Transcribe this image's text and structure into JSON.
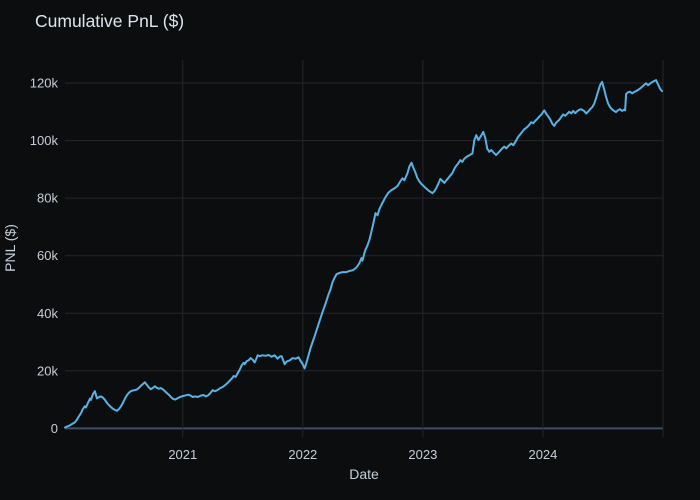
{
  "header": {
    "title": "Cumulative PnL ($)"
  },
  "colors": {
    "background": "#0c0d0f",
    "grid": "#26272b",
    "zero_line": "#3d4f63",
    "series_line": "#57b2e5",
    "title_text": "#dce5ee",
    "tick_text": "#c6cfd9"
  },
  "chart_data": {
    "type": "line",
    "title": "Cumulative PnL ($)",
    "xlabel": "Date",
    "ylabel": "PNL ($)",
    "legend": "none",
    "grid": true,
    "y_unit": "USD thousands (k)",
    "x_unit": "decimal year",
    "x_range": [
      2020.019,
      2025.0
    ],
    "y_range_k": [
      -3,
      128
    ],
    "x_ticks": [
      {
        "value": 2021,
        "label": "2021"
      },
      {
        "value": 2022,
        "label": "2022"
      },
      {
        "value": 2023,
        "label": "2023"
      },
      {
        "value": 2024,
        "label": "2024"
      },
      {
        "value": 2025,
        "label": ""
      }
    ],
    "y_ticks": [
      {
        "value": 0,
        "label": "0"
      },
      {
        "value": 20,
        "label": "20k"
      },
      {
        "value": 40,
        "label": "40k"
      },
      {
        "value": 60,
        "label": "60k"
      },
      {
        "value": 80,
        "label": "80k"
      },
      {
        "value": 100,
        "label": "100k"
      },
      {
        "value": 120,
        "label": "120k"
      }
    ],
    "series": [
      {
        "name": "Cumulative PnL",
        "color": "#57b2e5",
        "points": [
          [
            2020.019,
            0.3
          ],
          [
            2020.035,
            0.6
          ],
          [
            2020.052,
            0.9
          ],
          [
            2020.069,
            1.3
          ],
          [
            2020.085,
            1.7
          ],
          [
            2020.102,
            2.1
          ],
          [
            2020.118,
            3.0
          ],
          [
            2020.135,
            4.2
          ],
          [
            2020.152,
            5.3
          ],
          [
            2020.168,
            6.8
          ],
          [
            2020.185,
            7.7
          ],
          [
            2020.193,
            7.2
          ],
          [
            2020.21,
            8.8
          ],
          [
            2020.227,
            10.3
          ],
          [
            2020.235,
            9.9
          ],
          [
            2020.252,
            11.9
          ],
          [
            2020.268,
            12.9
          ],
          [
            2020.285,
            10.4
          ],
          [
            2020.302,
            10.9
          ],
          [
            2020.318,
            11.1
          ],
          [
            2020.335,
            10.7
          ],
          [
            2020.352,
            9.9
          ],
          [
            2020.368,
            8.9
          ],
          [
            2020.385,
            8.1
          ],
          [
            2020.402,
            7.4
          ],
          [
            2020.418,
            6.8
          ],
          [
            2020.435,
            6.4
          ],
          [
            2020.452,
            6.1
          ],
          [
            2020.468,
            6.7
          ],
          [
            2020.485,
            7.6
          ],
          [
            2020.501,
            8.9
          ],
          [
            2020.518,
            10.3
          ],
          [
            2020.535,
            11.5
          ],
          [
            2020.551,
            12.4
          ],
          [
            2020.568,
            12.9
          ],
          [
            2020.585,
            13.2
          ],
          [
            2020.601,
            13.3
          ],
          [
            2020.618,
            13.5
          ],
          [
            2020.635,
            14.1
          ],
          [
            2020.651,
            14.8
          ],
          [
            2020.668,
            15.4
          ],
          [
            2020.684,
            16.0
          ],
          [
            2020.701,
            15.1
          ],
          [
            2020.718,
            14.2
          ],
          [
            2020.734,
            13.6
          ],
          [
            2020.751,
            14.1
          ],
          [
            2020.768,
            14.6
          ],
          [
            2020.784,
            14.1
          ],
          [
            2020.801,
            13.8
          ],
          [
            2020.817,
            14.0
          ],
          [
            2020.834,
            13.6
          ],
          [
            2020.851,
            12.9
          ],
          [
            2020.867,
            12.3
          ],
          [
            2020.884,
            11.7
          ],
          [
            2020.901,
            10.9
          ],
          [
            2020.917,
            10.3
          ],
          [
            2020.934,
            10.0
          ],
          [
            2020.95,
            10.3
          ],
          [
            2020.967,
            10.7
          ],
          [
            2020.984,
            11.0
          ],
          [
            2021.0,
            11.2
          ],
          [
            2021.025,
            11.5
          ],
          [
            2021.05,
            11.7
          ],
          [
            2021.067,
            11.3
          ],
          [
            2021.083,
            10.9
          ],
          [
            2021.1,
            11.1
          ],
          [
            2021.125,
            10.9
          ],
          [
            2021.15,
            11.4
          ],
          [
            2021.175,
            11.6
          ],
          [
            2021.191,
            11.1
          ],
          [
            2021.208,
            11.4
          ],
          [
            2021.225,
            12.0
          ],
          [
            2021.249,
            13.3
          ],
          [
            2021.266,
            12.9
          ],
          [
            2021.283,
            13.2
          ],
          [
            2021.308,
            13.9
          ],
          [
            2021.333,
            14.4
          ],
          [
            2021.358,
            15.2
          ],
          [
            2021.383,
            16.2
          ],
          [
            2021.408,
            17.3
          ],
          [
            2021.424,
            18.2
          ],
          [
            2021.441,
            17.9
          ],
          [
            2021.457,
            19.1
          ],
          [
            2021.474,
            20.4
          ],
          [
            2021.491,
            21.9
          ],
          [
            2021.507,
            22.8
          ],
          [
            2021.516,
            22.3
          ],
          [
            2021.532,
            23.3
          ],
          [
            2021.549,
            23.7
          ],
          [
            2021.566,
            24.4
          ],
          [
            2021.582,
            23.9
          ],
          [
            2021.599,
            22.9
          ],
          [
            2021.615,
            24.4
          ],
          [
            2021.624,
            25.4
          ],
          [
            2021.64,
            25.1
          ],
          [
            2021.665,
            25.4
          ],
          [
            2021.69,
            25.2
          ],
          [
            2021.715,
            25.5
          ],
          [
            2021.74,
            24.9
          ],
          [
            2021.765,
            25.4
          ],
          [
            2021.79,
            24.2
          ],
          [
            2021.807,
            24.9
          ],
          [
            2021.823,
            25.1
          ],
          [
            2021.84,
            23.3
          ],
          [
            2021.848,
            22.3
          ],
          [
            2021.865,
            23.2
          ],
          [
            2021.89,
            23.6
          ],
          [
            2021.915,
            24.4
          ],
          [
            2021.94,
            24.2
          ],
          [
            2021.965,
            24.7
          ],
          [
            2021.981,
            23.4
          ],
          [
            2021.998,
            22.4
          ],
          [
            2022.015,
            20.8
          ],
          [
            2022.031,
            23.0
          ],
          [
            2022.048,
            25.5
          ],
          [
            2022.065,
            28.0
          ],
          [
            2022.081,
            30.0
          ],
          [
            2022.098,
            32.0
          ],
          [
            2022.114,
            34.0
          ],
          [
            2022.131,
            36.3
          ],
          [
            2022.148,
            38.4
          ],
          [
            2022.164,
            40.4
          ],
          [
            2022.181,
            42.4
          ],
          [
            2022.198,
            44.5
          ],
          [
            2022.214,
            46.5
          ],
          [
            2022.231,
            48.4
          ],
          [
            2022.247,
            50.8
          ],
          [
            2022.264,
            52.3
          ],
          [
            2022.281,
            53.6
          ],
          [
            2022.306,
            54.0
          ],
          [
            2022.33,
            54.3
          ],
          [
            2022.364,
            54.3
          ],
          [
            2022.389,
            54.7
          ],
          [
            2022.414,
            54.9
          ],
          [
            2022.447,
            55.9
          ],
          [
            2022.472,
            57.5
          ],
          [
            2022.489,
            59.2
          ],
          [
            2022.497,
            58.3
          ],
          [
            2022.514,
            61.0
          ],
          [
            2022.522,
            62.1
          ],
          [
            2022.539,
            63.6
          ],
          [
            2022.555,
            65.6
          ],
          [
            2022.572,
            68.5
          ],
          [
            2022.589,
            71.5
          ],
          [
            2022.605,
            74.8
          ],
          [
            2022.622,
            74.0
          ],
          [
            2022.639,
            76.3
          ],
          [
            2022.663,
            78.3
          ],
          [
            2022.688,
            80.3
          ],
          [
            2022.713,
            81.9
          ],
          [
            2022.738,
            82.8
          ],
          [
            2022.763,
            83.4
          ],
          [
            2022.788,
            84.2
          ],
          [
            2022.813,
            85.9
          ],
          [
            2022.83,
            86.9
          ],
          [
            2022.846,
            86.2
          ],
          [
            2022.871,
            88.6
          ],
          [
            2022.888,
            91.0
          ],
          [
            2022.905,
            92.3
          ],
          [
            2022.921,
            90.5
          ],
          [
            2022.938,
            88.9
          ],
          [
            2022.954,
            87.0
          ],
          [
            2022.971,
            85.8
          ],
          [
            2022.988,
            84.9
          ],
          [
            2023.004,
            84.3
          ],
          [
            2023.021,
            83.6
          ],
          [
            2023.046,
            82.7
          ],
          [
            2023.079,
            81.7
          ],
          [
            2023.096,
            82.4
          ],
          [
            2023.112,
            83.5
          ],
          [
            2023.129,
            85.1
          ],
          [
            2023.146,
            86.7
          ],
          [
            2023.162,
            86.0
          ],
          [
            2023.179,
            85.3
          ],
          [
            2023.196,
            86.2
          ],
          [
            2023.22,
            87.4
          ],
          [
            2023.245,
            88.7
          ],
          [
            2023.27,
            90.8
          ],
          [
            2023.295,
            92.1
          ],
          [
            2023.312,
            93.2
          ],
          [
            2023.328,
            92.6
          ],
          [
            2023.345,
            93.7
          ],
          [
            2023.362,
            94.3
          ],
          [
            2023.387,
            94.9
          ],
          [
            2023.412,
            95.5
          ],
          [
            2023.428,
            100.1
          ],
          [
            2023.445,
            101.9
          ],
          [
            2023.462,
            100.2
          ],
          [
            2023.478,
            101.2
          ],
          [
            2023.503,
            103.0
          ],
          [
            2023.52,
            100.9
          ],
          [
            2023.536,
            97.2
          ],
          [
            2023.553,
            96.1
          ],
          [
            2023.569,
            96.7
          ],
          [
            2023.594,
            95.6
          ],
          [
            2023.611,
            95.0
          ],
          [
            2023.636,
            96.1
          ],
          [
            2023.661,
            97.3
          ],
          [
            2023.678,
            97.9
          ],
          [
            2023.694,
            97.3
          ],
          [
            2023.719,
            98.4
          ],
          [
            2023.736,
            99.0
          ],
          [
            2023.753,
            98.4
          ],
          [
            2023.778,
            100.1
          ],
          [
            2023.794,
            101.3
          ],
          [
            2023.811,
            102.2
          ],
          [
            2023.827,
            103.0
          ],
          [
            2023.844,
            103.9
          ],
          [
            2023.869,
            104.7
          ],
          [
            2023.886,
            105.5
          ],
          [
            2023.902,
            106.4
          ],
          [
            2023.919,
            106.0
          ],
          [
            2023.935,
            106.8
          ],
          [
            2023.952,
            107.5
          ],
          [
            2023.969,
            108.3
          ],
          [
            2023.986,
            109.0
          ],
          [
            2024.002,
            110.0
          ],
          [
            2024.011,
            110.5
          ],
          [
            2024.027,
            109.3
          ],
          [
            2024.044,
            108.4
          ],
          [
            2024.061,
            107.3
          ],
          [
            2024.077,
            105.9
          ],
          [
            2024.094,
            105.1
          ],
          [
            2024.11,
            106.2
          ],
          [
            2024.135,
            107.2
          ],
          [
            2024.152,
            108.2
          ],
          [
            2024.169,
            109.1
          ],
          [
            2024.185,
            108.6
          ],
          [
            2024.202,
            109.3
          ],
          [
            2024.219,
            110.0
          ],
          [
            2024.235,
            109.4
          ],
          [
            2024.252,
            110.3
          ],
          [
            2024.269,
            109.5
          ],
          [
            2024.285,
            110.2
          ],
          [
            2024.302,
            110.7
          ],
          [
            2024.318,
            110.9
          ],
          [
            2024.343,
            110.3
          ],
          [
            2024.36,
            109.4
          ],
          [
            2024.377,
            110.1
          ],
          [
            2024.393,
            110.9
          ],
          [
            2024.41,
            111.6
          ],
          [
            2024.427,
            112.8
          ],
          [
            2024.443,
            114.8
          ],
          [
            2024.46,
            117.2
          ],
          [
            2024.476,
            119.3
          ],
          [
            2024.493,
            120.4
          ],
          [
            2024.51,
            117.8
          ],
          [
            2024.526,
            115.1
          ],
          [
            2024.543,
            112.9
          ],
          [
            2024.56,
            111.6
          ],
          [
            2024.576,
            110.8
          ],
          [
            2024.593,
            110.3
          ],
          [
            2024.609,
            109.9
          ],
          [
            2024.626,
            110.6
          ],
          [
            2024.643,
            110.9
          ],
          [
            2024.659,
            110.3
          ],
          [
            2024.676,
            110.7
          ],
          [
            2024.684,
            110.5
          ],
          [
            2024.693,
            116.2
          ],
          [
            2024.709,
            116.8
          ],
          [
            2024.726,
            117.0
          ],
          [
            2024.743,
            116.4
          ],
          [
            2024.759,
            116.9
          ],
          [
            2024.776,
            117.2
          ],
          [
            2024.792,
            117.6
          ],
          [
            2024.809,
            118.1
          ],
          [
            2024.826,
            118.7
          ],
          [
            2024.842,
            119.3
          ],
          [
            2024.859,
            119.9
          ],
          [
            2024.876,
            119.2
          ],
          [
            2024.892,
            119.8
          ],
          [
            2024.909,
            120.3
          ],
          [
            2024.926,
            120.7
          ],
          [
            2024.942,
            121.0
          ],
          [
            2024.959,
            119.5
          ],
          [
            2024.976,
            118.0
          ],
          [
            2024.992,
            117.2
          ]
        ]
      }
    ]
  }
}
